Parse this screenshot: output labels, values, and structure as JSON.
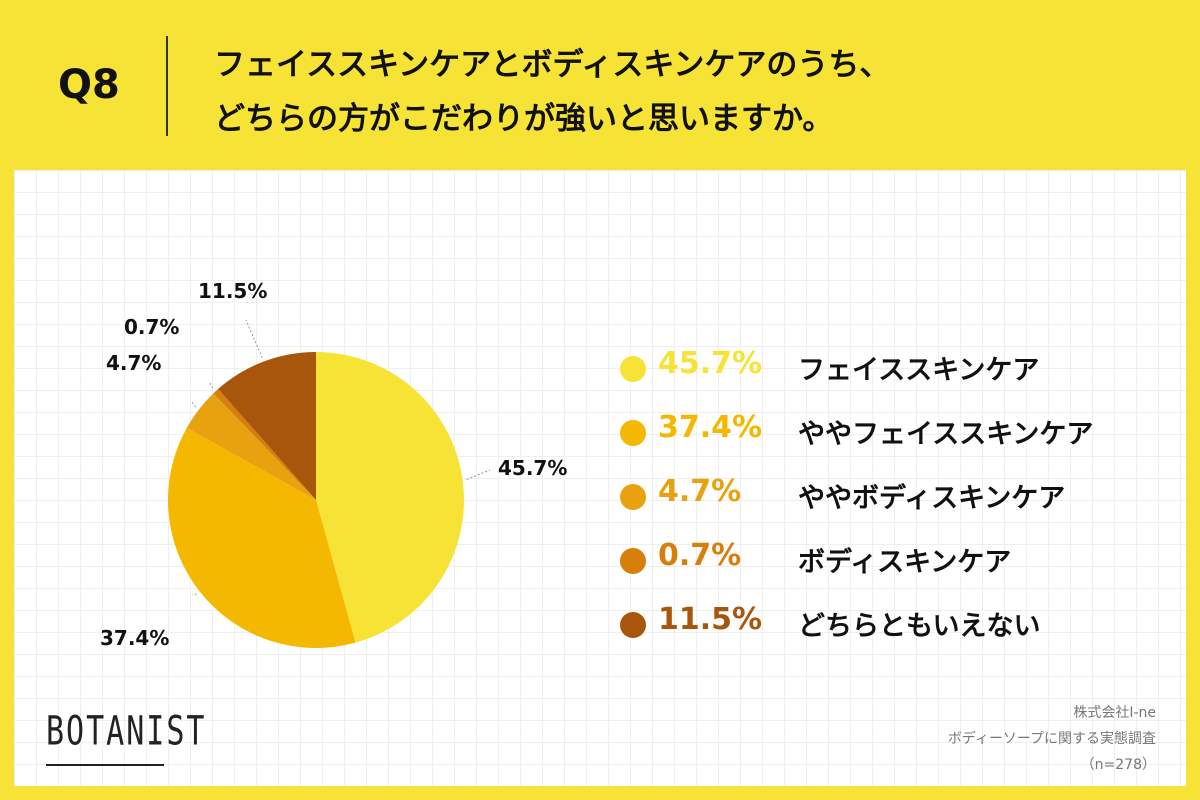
{
  "header": {
    "q_label": "Q8",
    "question_line1": "フェイススキンケアとボディスキンケアのうち、",
    "question_line2": "どちらの方がこだわりが強いと思いますか。"
  },
  "chart_data": {
    "type": "pie",
    "categories": [
      "フェイススキンケア",
      "ややフェイススキンケア",
      "ややボディスキンケア",
      "ボディスキンケア",
      "どちらともいえない"
    ],
    "values": [
      45.7,
      37.4,
      4.7,
      0.7,
      11.5
    ],
    "value_labels": [
      "45.7%",
      "37.4%",
      "4.7%",
      "0.7%",
      "11.5%"
    ],
    "colors": [
      "#f7e335",
      "#f5b800",
      "#e8a10f",
      "#d77e0b",
      "#a9560d"
    ],
    "legend_placement": "right",
    "start_angle": "12 o'clock",
    "direction": "clockwise"
  },
  "legend": [
    {
      "pct": "45.7%",
      "name": "フェイススキンケア",
      "color": "#f7e335"
    },
    {
      "pct": "37.4%",
      "name": "ややフェイススキンケア",
      "color": "#f5b800"
    },
    {
      "pct": "4.7%",
      "name": "ややボディスキンケア",
      "color": "#e8a10f"
    },
    {
      "pct": "0.7%",
      "name": "ボディスキンケア",
      "color": "#d77e0b"
    },
    {
      "pct": "11.5%",
      "name": "どちらともいえない",
      "color": "#a9560d"
    }
  ],
  "footer": {
    "logo": "BOTANIST",
    "company": "株式会社I-ne",
    "survey": "ボディーソープに関する実態調査",
    "sample": "（n=278）"
  }
}
